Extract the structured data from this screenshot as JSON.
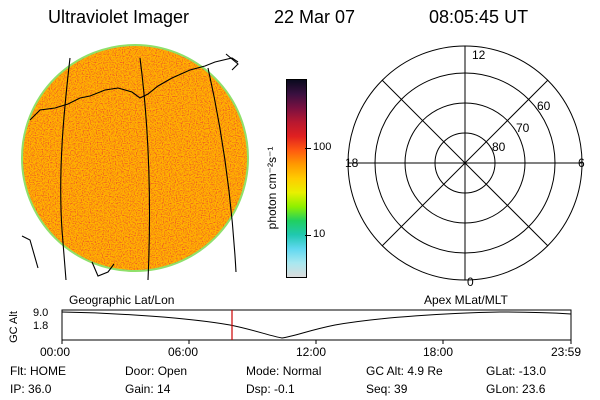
{
  "header": {
    "instrument": "Ultraviolet Imager",
    "date": "22 Mar 07",
    "time": "08:05:45 UT"
  },
  "colorbar": {
    "label": "photon cm⁻²s⁻¹",
    "ticks": [
      "100",
      "10"
    ],
    "colors": [
      "#0a0a1e",
      "#3a1040",
      "#7a1040",
      "#b81830",
      "#e02020",
      "#ff5a10",
      "#ff9a00",
      "#ffcc00",
      "#e8f000",
      "#8ef000",
      "#20d060",
      "#20c8b0",
      "#60d8f0",
      "#a8e8f0",
      "#dcdcdc"
    ]
  },
  "polar_plot": {
    "labels": {
      "top": "12",
      "left": "18",
      "right": "6",
      "bottom": "0",
      "lat_60": "60",
      "lat_70": "70",
      "lat_80": "80"
    }
  },
  "image_panel": {
    "fill_color": "#ffb400",
    "edge_color": "#8fe06a"
  },
  "altitude_strip": {
    "left_title": "Geographic Lat/Lon",
    "right_title": "Apex MLat/MLT",
    "axis_label": "GC Alt",
    "y_ticks": [
      "9.0",
      "1.8"
    ],
    "marker_color": "#cc0000",
    "x_ticks": [
      "00:00",
      "06:00",
      "12:00",
      "18:00",
      "23:59"
    ]
  },
  "status": {
    "rows": [
      [
        {
          "key": "Flt:",
          "value": "HOME"
        },
        {
          "key": "Door:",
          "value": "Open"
        },
        {
          "key": "Mode:",
          "value": "Normal"
        },
        {
          "key": "GC Alt:",
          "value": "4.9 Re"
        },
        {
          "key": "GLat:",
          "value": "-13.0"
        }
      ],
      [
        {
          "key": "IP:",
          "value": "36.0"
        },
        {
          "key": "Gain:",
          "value": "14"
        },
        {
          "key": "Dsp:",
          "value": "-0.1"
        },
        {
          "key": "Seq:",
          "value": "39"
        },
        {
          "key": "GLon:",
          "value": "23.6"
        }
      ]
    ]
  }
}
